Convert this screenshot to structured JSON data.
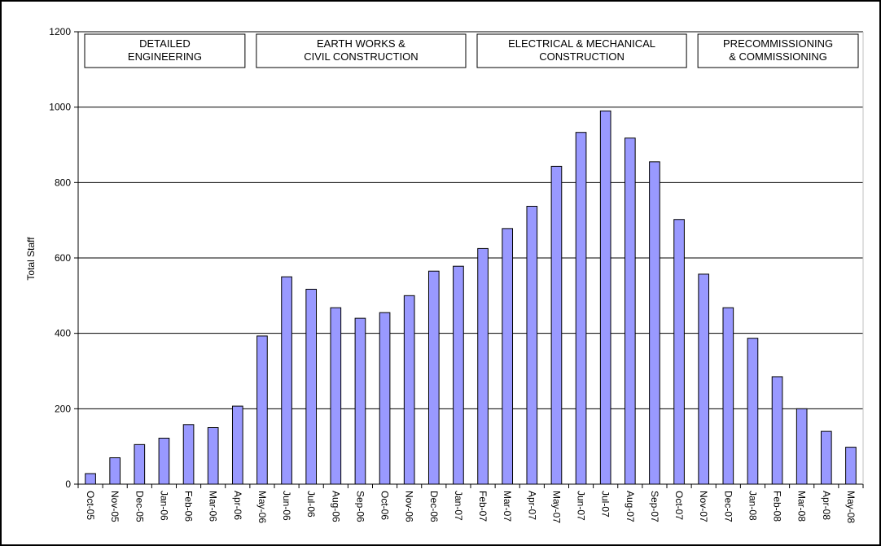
{
  "chart_data": {
    "type": "bar",
    "title": "",
    "xlabel": "",
    "ylabel": "Total Staff",
    "ylim": [
      0,
      1200
    ],
    "yticks": [
      0,
      200,
      400,
      600,
      800,
      1000,
      1200
    ],
    "grid": "horizontal major gridlines",
    "legend": "none",
    "categories": [
      "Oct-05",
      "Nov-05",
      "Dec-05",
      "Jan-06",
      "Feb-06",
      "Mar-06",
      "Apr-06",
      "May-06",
      "Jun-06",
      "Jul-06",
      "Aug-06",
      "Sep-06",
      "Oct-06",
      "Nov-06",
      "Dec-06",
      "Jan-07",
      "Feb-07",
      "Mar-07",
      "Apr-07",
      "May-07",
      "Jun-07",
      "Jul-07",
      "Aug-07",
      "Sep-07",
      "Oct-07",
      "Nov-07",
      "Dec-07",
      "Jan-08",
      "Feb-08",
      "Mar-08",
      "Apr-08",
      "May-08"
    ],
    "values": [
      28,
      70,
      105,
      122,
      158,
      150,
      207,
      393,
      550,
      517,
      468,
      440,
      455,
      500,
      565,
      578,
      625,
      678,
      737,
      843,
      933,
      990,
      918,
      855,
      702,
      557,
      468,
      387,
      285,
      200,
      140,
      98
    ],
    "bar_color": "#9999ff",
    "bar_border": "#000000",
    "phases": [
      {
        "lines": [
          "DETAILED",
          "ENGINEERING"
        ],
        "start": "Oct-05",
        "end": "Apr-06"
      },
      {
        "lines": [
          "EARTH WORKS &",
          "CIVIL CONSTRUCTION"
        ],
        "start": "May-06",
        "end": "Jan-07"
      },
      {
        "lines": [
          "ELECTRICAL & MECHANICAL",
          "CONSTRUCTION"
        ],
        "start": "Feb-07",
        "end": "Oct-07"
      },
      {
        "lines": [
          "PRECOMMISSIONING",
          "& COMMISSIONING"
        ],
        "start": "Nov-07",
        "end": "May-08"
      }
    ]
  }
}
